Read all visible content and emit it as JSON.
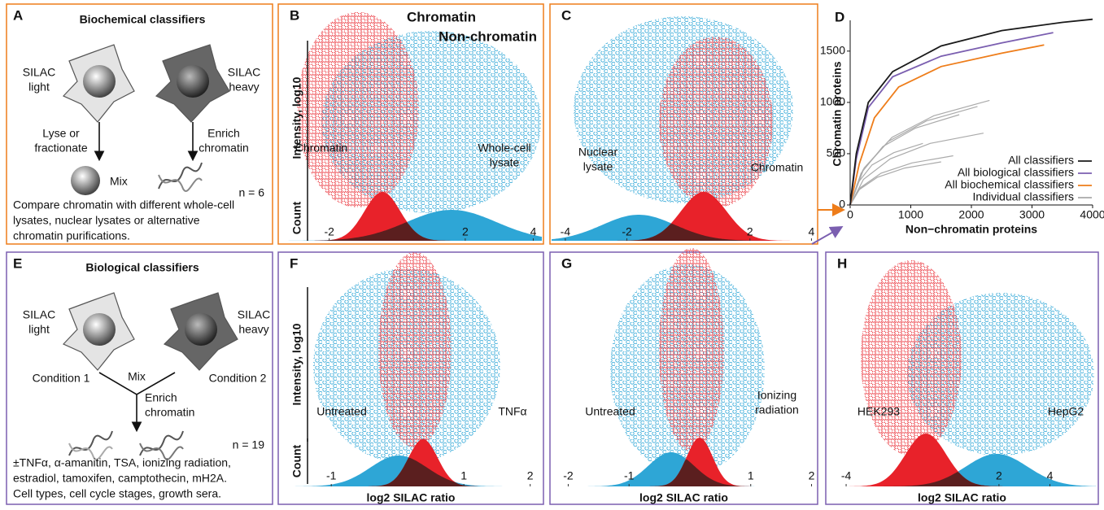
{
  "panels": {
    "A": {
      "letter": "A",
      "title": "Biochemical classifiers",
      "left_label": [
        "SILAC",
        "light"
      ],
      "right_label": [
        "SILAC",
        "heavy"
      ],
      "left_step": [
        "Lyse or",
        "fractionate"
      ],
      "right_step": [
        "Enrich",
        "chromatin"
      ],
      "mix": "Mix",
      "n": "n = 6",
      "caption": [
        "Compare chromatin with different whole-cell",
        "lysates, nuclear lysates or alternative",
        "chromatin purifications."
      ]
    },
    "B": {
      "letter": "B",
      "legend": [
        "Chromatin",
        "Non-chromatin"
      ],
      "y_label": "Intensity, log10",
      "count_label": "Count",
      "left": [
        "Chromatin"
      ],
      "right": [
        "Whole-cell",
        "lysate"
      ],
      "xlim": [
        -3.5,
        4.3
      ],
      "xticks": [
        -2,
        2,
        4
      ]
    },
    "C": {
      "letter": "C",
      "left": [
        "Nuclear",
        "lysate"
      ],
      "right": [
        "Chromatin"
      ],
      "xlim": [
        -4.5,
        4.2
      ],
      "xticks": [
        -4,
        -2,
        2,
        4
      ]
    },
    "E": {
      "letter": "E",
      "title": "Biological classifiers",
      "left_label": [
        "SILAC",
        "light"
      ],
      "right_label": [
        "SILAC",
        "heavy"
      ],
      "left_cond": "Condition 1",
      "right_cond": "Condition 2",
      "mix": "Mix",
      "step": [
        "Enrich",
        "chromatin"
      ],
      "n": "n = 19",
      "caption": [
        "±TNFα, α-amanitin, TSA, ionizing radiation,",
        "estradiol, tamoxifen, camptothecin, mH2A.",
        "Cell types, cell cycle stages, growth sera."
      ]
    },
    "F": {
      "letter": "F",
      "y_label": "Intensity, log10",
      "count_label": "Count",
      "left": [
        "Untreated"
      ],
      "right": [
        "TNFα"
      ],
      "x_label": "log2 SILAC ratio",
      "xlim": [
        -1.8,
        2.2
      ],
      "xticks": [
        -1,
        1,
        2
      ]
    },
    "G": {
      "letter": "G",
      "left": [
        "Untreated"
      ],
      "right": [
        "Ionizing",
        "radiation"
      ],
      "x_label": "log2 SILAC ratio",
      "xlim": [
        -2.3,
        2.1
      ],
      "xticks": [
        -2,
        -1,
        1,
        2
      ]
    },
    "H": {
      "letter": "H",
      "left": [
        "HEK293"
      ],
      "right": [
        "HepG2"
      ],
      "x_label": "log2 SILAC ratio",
      "xlim": [
        -4.8,
        5.9
      ],
      "xticks": [
        -4,
        2,
        4
      ]
    }
  },
  "chart_data": {
    "type": "line",
    "letter": "D",
    "ylabel": "Chromatin proteins",
    "xlabel": "Non−chromatin proteins",
    "xlim": [
      0,
      4000
    ],
    "ylim": [
      0,
      1800
    ],
    "xticks": [
      0,
      1000,
      2000,
      3000,
      4000
    ],
    "yticks": [
      0,
      500,
      1000,
      1500
    ],
    "series": [
      {
        "name": "All classifiers",
        "color": "#1a1a1a",
        "x": [
          0,
          100,
          300,
          700,
          1500,
          2500,
          3500,
          4000
        ],
        "values": [
          0,
          500,
          1000,
          1300,
          1550,
          1700,
          1780,
          1810
        ]
      },
      {
        "name": "All biological classifiers",
        "color": "#7b5fb0",
        "x": [
          0,
          100,
          300,
          700,
          1500,
          2500,
          3350
        ],
        "values": [
          0,
          450,
          950,
          1250,
          1450,
          1580,
          1680
        ]
      },
      {
        "name": "All biochemical classifiers",
        "color": "#ee7d1a",
        "x": [
          0,
          150,
          400,
          800,
          1500,
          2500,
          3200
        ],
        "values": [
          0,
          400,
          850,
          1150,
          1350,
          1480,
          1560
        ]
      },
      {
        "name": "Individual classifiers",
        "color": "#aaaaaa",
        "lines": [
          {
            "x": [
              0,
              230,
              690,
              1380,
              2300
            ],
            "values": [
              0,
              360,
              660,
              870,
              1020
            ]
          },
          {
            "x": [
              0,
              210,
              630,
              1260,
              2100
            ],
            "values": [
              0,
              340,
              620,
              820,
              960
            ]
          },
          {
            "x": [
              0,
              180,
              540,
              1080,
              1800
            ],
            "values": [
              0,
              310,
              570,
              750,
              880
            ]
          },
          {
            "x": [
              0,
              220,
              660,
              1320,
              2200
            ],
            "values": [
              0,
              250,
              450,
              600,
              700
            ]
          },
          {
            "x": [
              0,
              120,
              360,
              720,
              1200
            ],
            "values": [
              0,
              210,
              390,
              510,
              600
            ]
          },
          {
            "x": [
              0,
              170,
              510,
              1020,
              1700
            ],
            "values": [
              0,
              170,
              310,
              410,
              480
            ]
          },
          {
            "x": [
              0,
              150,
              450,
              900,
              1500
            ],
            "values": [
              0,
              150,
              270,
              360,
              420
            ]
          }
        ]
      }
    ]
  }
}
